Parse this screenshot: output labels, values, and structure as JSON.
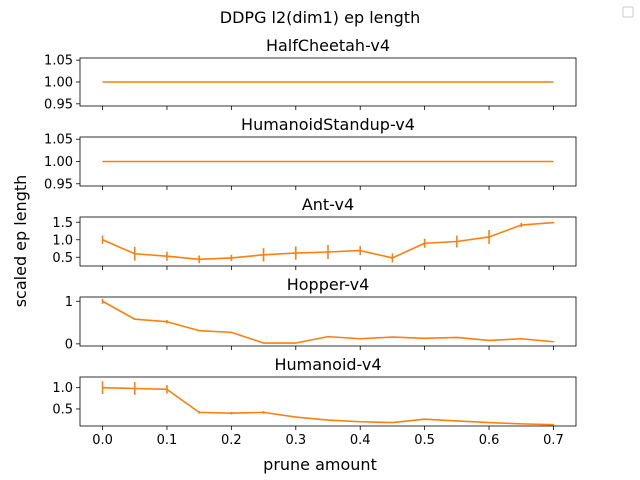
{
  "figure": {
    "suptitle": "DDPG l2(dim1) ep length",
    "xlabel": "prune amount",
    "ylabel": "scaled ep length",
    "line_color": "#ff7f0e"
  },
  "chart_data": [
    {
      "type": "line",
      "title": "HalfCheetah-v4",
      "x": [
        0.0,
        0.05,
        0.1,
        0.15,
        0.2,
        0.25,
        0.3,
        0.35,
        0.4,
        0.45,
        0.5,
        0.55,
        0.6,
        0.65,
        0.7
      ],
      "y": [
        1.0,
        1.0,
        1.0,
        1.0,
        1.0,
        1.0,
        1.0,
        1.0,
        1.0,
        1.0,
        1.0,
        1.0,
        1.0,
        1.0,
        1.0
      ],
      "err": [
        0,
        0,
        0,
        0,
        0,
        0,
        0,
        0,
        0,
        0,
        0,
        0,
        0,
        0,
        0
      ],
      "xlim": [
        -0.035,
        0.735
      ],
      "ylim": [
        0.945,
        1.055
      ],
      "yticks": [
        0.95,
        1.0,
        1.05
      ],
      "ytick_labels": [
        "0.95",
        "1.00",
        "1.05"
      ]
    },
    {
      "type": "line",
      "title": "HumanoidStandup-v4",
      "x": [
        0.0,
        0.05,
        0.1,
        0.15,
        0.2,
        0.25,
        0.3,
        0.35,
        0.4,
        0.45,
        0.5,
        0.55,
        0.6,
        0.65,
        0.7
      ],
      "y": [
        1.0,
        1.0,
        1.0,
        1.0,
        1.0,
        1.0,
        1.0,
        1.0,
        1.0,
        1.0,
        1.0,
        1.0,
        1.0,
        1.0,
        1.0
      ],
      "err": [
        0,
        0,
        0,
        0,
        0,
        0,
        0,
        0,
        0,
        0,
        0,
        0,
        0,
        0,
        0
      ],
      "xlim": [
        -0.035,
        0.735
      ],
      "ylim": [
        0.945,
        1.055
      ],
      "yticks": [
        0.95,
        1.0,
        1.05
      ],
      "ytick_labels": [
        "0.95",
        "1.00",
        "1.05"
      ]
    },
    {
      "type": "line",
      "title": "Ant-v4",
      "x": [
        0.0,
        0.05,
        0.1,
        0.15,
        0.2,
        0.25,
        0.3,
        0.35,
        0.4,
        0.45,
        0.5,
        0.55,
        0.6,
        0.65,
        0.7
      ],
      "y": [
        1.0,
        0.6,
        0.53,
        0.44,
        0.48,
        0.57,
        0.62,
        0.65,
        0.69,
        0.48,
        0.9,
        0.95,
        1.08,
        1.42,
        1.49
      ],
      "err": [
        0.12,
        0.2,
        0.13,
        0.11,
        0.09,
        0.19,
        0.19,
        0.2,
        0.13,
        0.13,
        0.13,
        0.17,
        0.2,
        0.06,
        0.02
      ],
      "xlim": [
        -0.035,
        0.735
      ],
      "ylim": [
        0.25,
        1.65
      ],
      "yticks": [
        0.5,
        1.0,
        1.5
      ],
      "ytick_labels": [
        "0.5",
        "1.0",
        "1.5"
      ]
    },
    {
      "type": "line",
      "title": "Hopper-v4",
      "x": [
        0.0,
        0.05,
        0.1,
        0.15,
        0.2,
        0.25,
        0.3,
        0.35,
        0.4,
        0.45,
        0.5,
        0.55,
        0.6,
        0.65,
        0.7
      ],
      "y": [
        1.0,
        0.58,
        0.52,
        0.31,
        0.27,
        0.02,
        0.02,
        0.17,
        0.12,
        0.16,
        0.13,
        0.15,
        0.08,
        0.12,
        0.05
      ],
      "err": [
        0.06,
        0.02,
        0.04,
        0.01,
        0.01,
        0.01,
        0.01,
        0.01,
        0.01,
        0.01,
        0.01,
        0.01,
        0.01,
        0.02,
        0.01
      ],
      "xlim": [
        -0.035,
        0.735
      ],
      "ylim": [
        -0.05,
        1.1
      ],
      "yticks": [
        0,
        1
      ],
      "ytick_labels": [
        "0",
        "1"
      ]
    },
    {
      "type": "line",
      "title": "Humanoid-v4",
      "x": [
        0.0,
        0.05,
        0.1,
        0.15,
        0.2,
        0.25,
        0.3,
        0.35,
        0.4,
        0.45,
        0.5,
        0.55,
        0.6,
        0.65,
        0.7
      ],
      "y": [
        1.0,
        0.98,
        0.96,
        0.42,
        0.4,
        0.42,
        0.31,
        0.24,
        0.2,
        0.18,
        0.26,
        0.22,
        0.18,
        0.15,
        0.13
      ],
      "err": [
        0.15,
        0.15,
        0.1,
        0.03,
        0.03,
        0.03,
        0.01,
        0.01,
        0.01,
        0.01,
        0.01,
        0.01,
        0.01,
        0.01,
        0.01
      ],
      "xlim": [
        -0.035,
        0.735
      ],
      "ylim": [
        0.1,
        1.25
      ],
      "yticks": [
        0.5,
        1.0
      ],
      "ytick_labels": [
        "0.5",
        "1.0"
      ]
    }
  ],
  "xticks": [
    0.0,
    0.1,
    0.2,
    0.3,
    0.4,
    0.5,
    0.6,
    0.7
  ],
  "xtick_labels": [
    "0.0",
    "0.1",
    "0.2",
    "0.3",
    "0.4",
    "0.5",
    "0.6",
    "0.7"
  ]
}
